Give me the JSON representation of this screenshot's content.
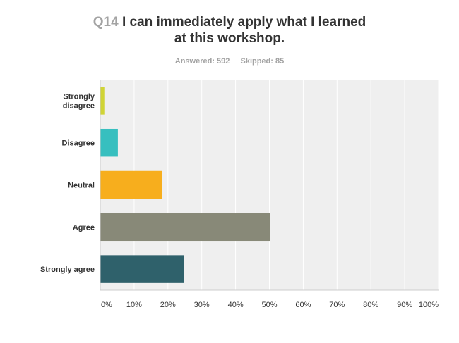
{
  "question": {
    "number": "Q14",
    "text_line1": "I can immediately apply what I learned",
    "text_line2": "at this workshop."
  },
  "stats": {
    "answered": "Answered: 592",
    "skipped": "Skipped: 85"
  },
  "chart_data": {
    "type": "bar",
    "orientation": "horizontal",
    "categories": [
      [
        "Strongly",
        "disagree"
      ],
      [
        "Disagree"
      ],
      [
        "Neutral"
      ],
      [
        "Agree"
      ],
      [
        "Strongly agree"
      ]
    ],
    "values": [
      1.2,
      5.2,
      18.2,
      50.3,
      24.8
    ],
    "colors": [
      "#d0d436",
      "#37bfbf",
      "#f7ae1d",
      "#888978",
      "#2f616b"
    ],
    "xlim": [
      0,
      100
    ],
    "xticks": [
      "0%",
      "10%",
      "20%",
      "30%",
      "40%",
      "50%",
      "60%",
      "70%",
      "80%",
      "90%",
      "100%"
    ],
    "grid": true,
    "background": "#efefef"
  }
}
